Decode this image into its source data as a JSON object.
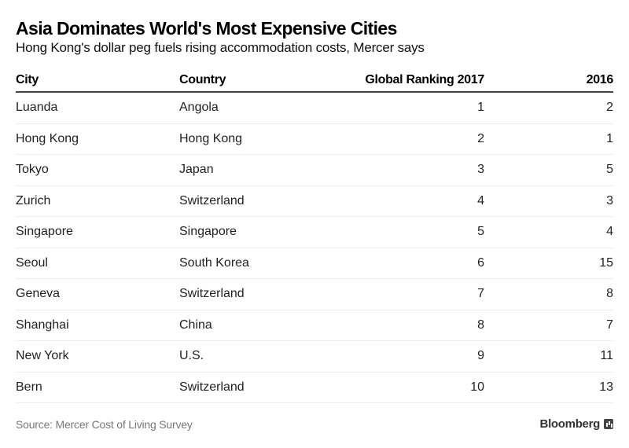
{
  "header": {
    "title": "Asia Dominates World's Most Expensive Cities",
    "subtitle": "Hong Kong's dollar peg fuels rising accommodation costs, Mercer says"
  },
  "chart_data": {
    "type": "table",
    "title": "Asia Dominates World's Most Expensive Cities",
    "subtitle": "Hong Kong's dollar peg fuels rising accommodation costs, Mercer says",
    "columns": [
      "City",
      "Country",
      "Global Ranking 2017",
      "2016"
    ],
    "rows": [
      [
        "Luanda",
        "Angola",
        "1",
        "2"
      ],
      [
        "Hong Kong",
        "Hong Kong",
        "2",
        "1"
      ],
      [
        "Tokyo",
        "Japan",
        "3",
        "5"
      ],
      [
        "Zurich",
        "Switzerland",
        "4",
        "3"
      ],
      [
        "Singapore",
        "Singapore",
        "5",
        "4"
      ],
      [
        "Seoul",
        "South Korea",
        "6",
        "15"
      ],
      [
        "Geneva",
        "Switzerland",
        "7",
        "8"
      ],
      [
        "Shanghai",
        "China",
        "8",
        "7"
      ],
      [
        "New York",
        "U.S.",
        "9",
        "11"
      ],
      [
        "Bern",
        "Switzerland",
        "10",
        "13"
      ]
    ]
  },
  "footer": {
    "source": "Source: Mercer Cost of Living Survey",
    "brand": "Bloomberg",
    "brand_icon": "bloomberg-chart-logo"
  }
}
